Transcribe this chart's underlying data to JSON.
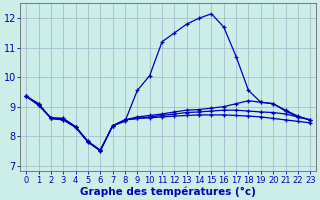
{
  "background_color": "#cceee8",
  "grid_color": "#aabbcc",
  "line_color": "#0000bb",
  "xlabel": "Graphe des températures (°c)",
  "xlabel_color": "#0000bb",
  "tick_color": "#0000bb",
  "axis_color": "#777777",
  "ylim": [
    6.8,
    12.5
  ],
  "xlim": [
    -0.5,
    23.5
  ],
  "yticks": [
    7,
    8,
    9,
    10,
    11,
    12
  ],
  "xticks": [
    0,
    1,
    2,
    3,
    4,
    5,
    6,
    7,
    8,
    9,
    10,
    11,
    12,
    13,
    14,
    15,
    16,
    17,
    18,
    19,
    20,
    21,
    22,
    23
  ],
  "series1_x": [
    0,
    1,
    2,
    3,
    4,
    5,
    6,
    7,
    8,
    9,
    10,
    11,
    12,
    13,
    14,
    15,
    16,
    17,
    18,
    19,
    20,
    21,
    22,
    23
  ],
  "series1_y": [
    9.35,
    9.1,
    8.6,
    8.55,
    8.3,
    7.8,
    7.5,
    8.35,
    8.5,
    9.55,
    10.05,
    11.2,
    11.5,
    11.8,
    12.0,
    12.15,
    11.7,
    10.7,
    9.55,
    9.15,
    9.1,
    8.85,
    8.65,
    8.55
  ],
  "series2_x": [
    0,
    1,
    2,
    3,
    4,
    5,
    6,
    7,
    8,
    9,
    10,
    11,
    12,
    13,
    14,
    15,
    16,
    17,
    18,
    19,
    20,
    21,
    22,
    23
  ],
  "series2_y": [
    9.35,
    9.1,
    8.6,
    8.55,
    8.3,
    7.8,
    7.5,
    8.35,
    8.55,
    8.65,
    8.7,
    8.75,
    8.82,
    8.88,
    8.9,
    8.95,
    9.0,
    9.1,
    9.2,
    9.15,
    9.1,
    8.88,
    8.68,
    8.55
  ],
  "series3_x": [
    0,
    1,
    2,
    3,
    4,
    5,
    6,
    7,
    8,
    9,
    10,
    11,
    12,
    13,
    14,
    15,
    16,
    17,
    18,
    19,
    20,
    21,
    22,
    23
  ],
  "series3_y": [
    9.35,
    9.05,
    8.62,
    8.6,
    8.32,
    7.82,
    7.52,
    8.35,
    8.55,
    8.6,
    8.65,
    8.7,
    8.75,
    8.8,
    8.82,
    8.85,
    8.88,
    8.88,
    8.85,
    8.82,
    8.8,
    8.75,
    8.65,
    8.55
  ],
  "series4_x": [
    0,
    1,
    2,
    3,
    4,
    5,
    6,
    7,
    8,
    9,
    10,
    11,
    12,
    13,
    14,
    15,
    16,
    17,
    18,
    19,
    20,
    21,
    22,
    23
  ],
  "series4_y": [
    9.35,
    9.05,
    8.62,
    8.6,
    8.32,
    7.82,
    7.52,
    8.35,
    8.55,
    8.6,
    8.62,
    8.65,
    8.68,
    8.7,
    8.72,
    8.72,
    8.72,
    8.7,
    8.68,
    8.65,
    8.6,
    8.55,
    8.5,
    8.45
  ]
}
